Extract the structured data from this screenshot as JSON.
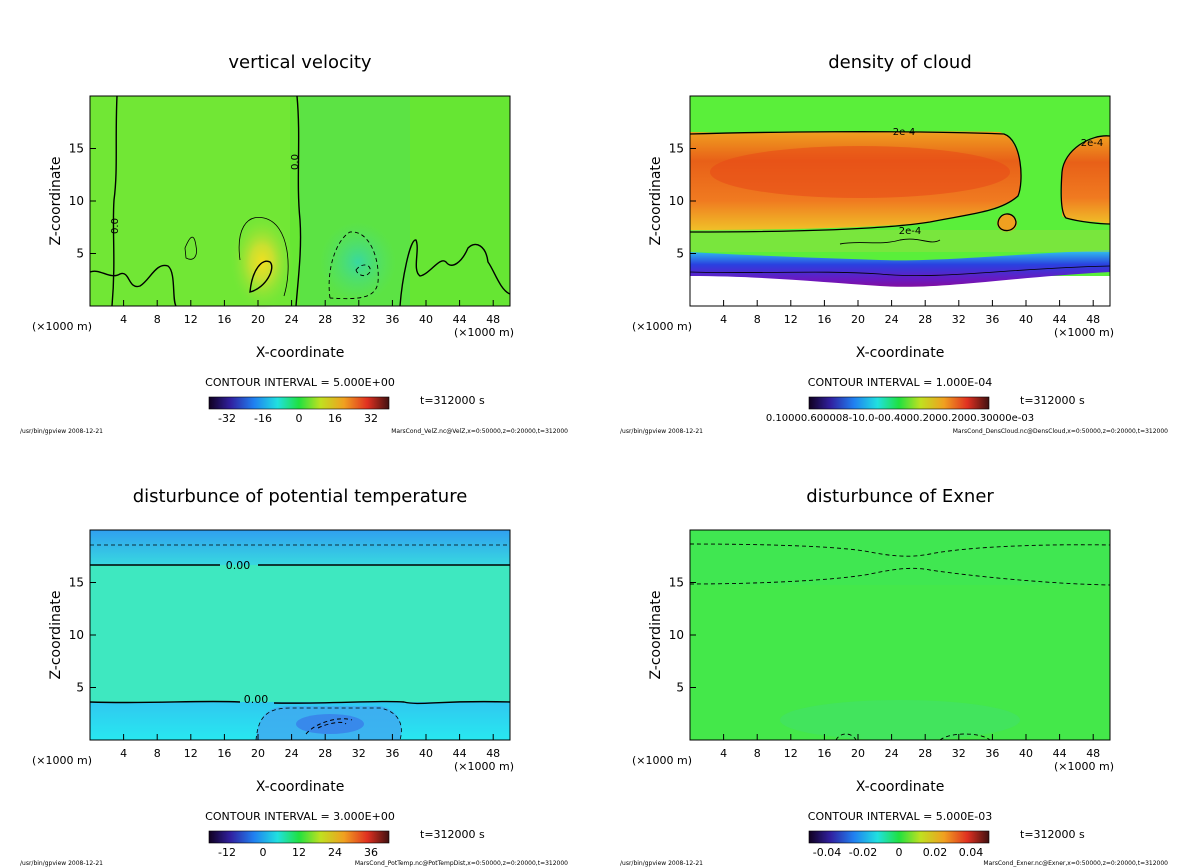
{
  "chart_data": [
    {
      "type": "heatmap",
      "title": "vertical velocity",
      "xlabel": "X-coordinate",
      "ylabel": "Z-coordinate",
      "x_unit_left": "(×1000 m)",
      "x_unit_right": "(×1000 m)",
      "xlim": [
        0,
        50
      ],
      "ylim": [
        0,
        20
      ],
      "x_ticks": [
        4,
        8,
        12,
        16,
        20,
        24,
        28,
        32,
        36,
        40,
        44,
        48
      ],
      "y_ticks": [
        5,
        10,
        15
      ],
      "contour_interval": "CONTOUR INTERVAL = 5.000E+00",
      "time": "t=312000 s",
      "colorbar_ticks": [
        "-32",
        "-16",
        "0",
        "16",
        "32"
      ],
      "contour_labels": [
        "0.0",
        "0.0"
      ],
      "footer_left": "/usr/bin/gpview  2008-12-21",
      "footer_right": "MarsCond_VelZ.nc@VelZ,x=0:50000,z=0:20000,t=312000",
      "colors": {
        "background": "#66e633",
        "high": "#c8e030",
        "low": "#40d880"
      }
    },
    {
      "type": "heatmap",
      "title": "density of cloud",
      "xlabel": "X-coordinate",
      "ylabel": "Z-coordinate",
      "x_unit_left": "(×1000 m)",
      "x_unit_right": "(×1000 m)",
      "xlim": [
        0,
        50
      ],
      "ylim": [
        0,
        20
      ],
      "x_ticks": [
        4,
        8,
        12,
        16,
        20,
        24,
        28,
        32,
        36,
        40,
        44,
        48
      ],
      "y_ticks": [
        5,
        10,
        15
      ],
      "contour_interval": "CONTOUR INTERVAL = 1.000E-04",
      "time": "t=312000 s",
      "colorbar_ticks": [
        "0.10000.600008-10.0-00.4000.2000.2000.30000e-03"
      ],
      "contour_labels": [
        "2e-4",
        "2e-4",
        "2e-4"
      ],
      "footer_left": "/usr/bin/gpview  2008-12-21",
      "footer_right": "MarsCond_DensCloud.nc@DensCloud,x=0:50000,z=0:20000,t=312000",
      "colors": {
        "background": "#5aef3a",
        "cloud": "#f07a20",
        "core": "#e84818",
        "base": "#3a4ce0"
      }
    },
    {
      "type": "heatmap",
      "title": "disturbunce of potential temperature",
      "xlabel": "X-coordinate",
      "ylabel": "Z-coordinate",
      "x_unit_left": "(×1000 m)",
      "x_unit_right": "(×1000 m)",
      "xlim": [
        0,
        50
      ],
      "ylim": [
        0,
        20
      ],
      "x_ticks": [
        4,
        8,
        12,
        16,
        20,
        24,
        28,
        32,
        36,
        40,
        44,
        48
      ],
      "y_ticks": [
        5,
        10,
        15
      ],
      "contour_interval": "CONTOUR INTERVAL = 3.000E+00",
      "time": "t=312000 s",
      "colorbar_ticks": [
        "-12",
        "0",
        "12",
        "24",
        "36"
      ],
      "contour_labels": [
        "0.00",
        "0.00"
      ],
      "footer_left": "/usr/bin/gpview  2008-12-21",
      "footer_right": "MarsCond_PotTemp.nc@PotTempDist,x=0:50000,z=0:20000,t=312000",
      "colors": {
        "background": "#3ee8c0",
        "top": "#3ab0f0",
        "bottom": "#28c8f5",
        "cold": "#40a8f0"
      }
    },
    {
      "type": "heatmap",
      "title": "disturbunce of Exner",
      "xlabel": "X-coordinate",
      "ylabel": "Z-coordinate",
      "x_unit_left": "(×1000 m)",
      "x_unit_right": "(×1000 m)",
      "xlim": [
        0,
        50
      ],
      "ylim": [
        0,
        20
      ],
      "x_ticks": [
        4,
        8,
        12,
        16,
        20,
        24,
        28,
        32,
        36,
        40,
        44,
        48
      ],
      "y_ticks": [
        5,
        10,
        15
      ],
      "contour_interval": "CONTOUR INTERVAL = 5.000E-03",
      "time": "t=312000 s",
      "colorbar_ticks": [
        "-0.04",
        "-0.02",
        "0",
        "0.02",
        "0.04"
      ],
      "contour_labels": [],
      "footer_left": "/usr/bin/gpview  2008-12-21",
      "footer_right": "MarsCond_Exner.nc@Exner,x=0:50000,z=0:20000,t=312000",
      "colors": {
        "background": "#44e84a"
      }
    }
  ]
}
